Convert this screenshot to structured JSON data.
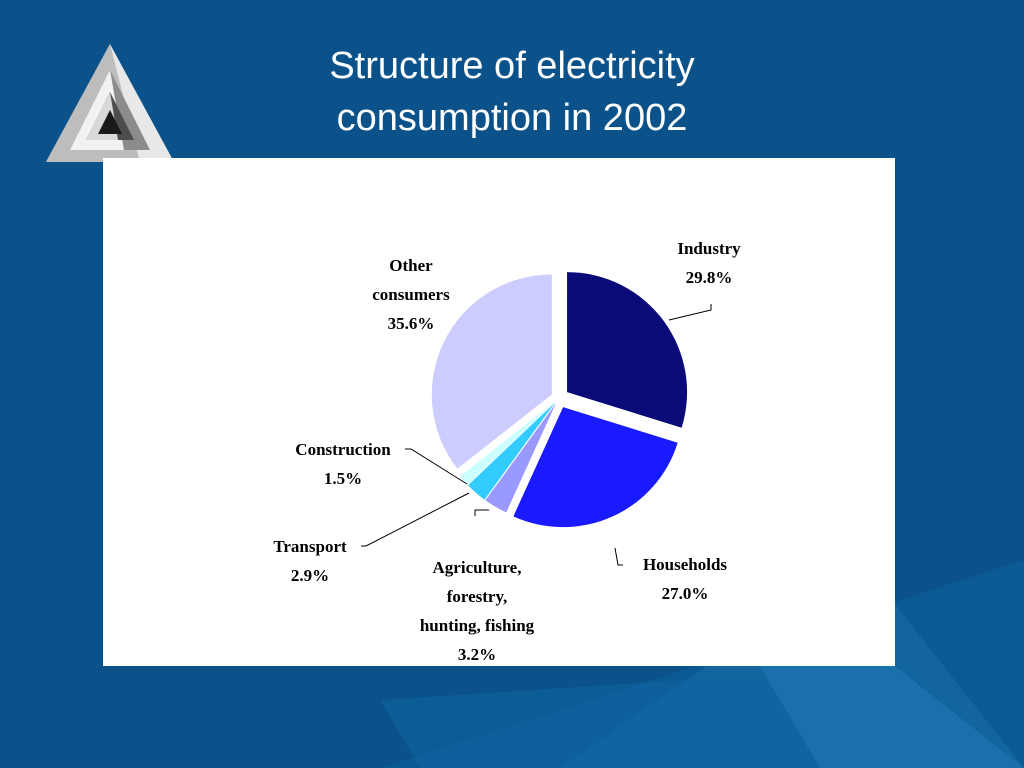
{
  "title": {
    "line1": "Structure of electricity",
    "line2": "consumption in 2002"
  },
  "colors": {
    "background": "#0a5289",
    "panel": "#ffffff"
  },
  "chart_data": {
    "type": "pie",
    "unit": "%",
    "slices": [
      {
        "label": [
          "Industry"
        ],
        "value": 29.8,
        "value_text": "29.8%",
        "color": "#0a0a78"
      },
      {
        "label": [
          "Households"
        ],
        "value": 27.0,
        "value_text": "27.0%",
        "color": "#1a1aff"
      },
      {
        "label": [
          "Agriculture,",
          "forestry,",
          "hunting, fishing"
        ],
        "value": 3.2,
        "value_text": "3.2%",
        "color": "#9999ff"
      },
      {
        "label": [
          "Transport"
        ],
        "value": 2.9,
        "value_text": "2.9%",
        "color": "#33ccff"
      },
      {
        "label": [
          "Construction"
        ],
        "value": 1.5,
        "value_text": "1.5%",
        "color": "#ccffff"
      },
      {
        "label": [
          "Other",
          "consumers"
        ],
        "value": 35.6,
        "value_text": "35.6%",
        "color": "#ccccff"
      }
    ]
  }
}
